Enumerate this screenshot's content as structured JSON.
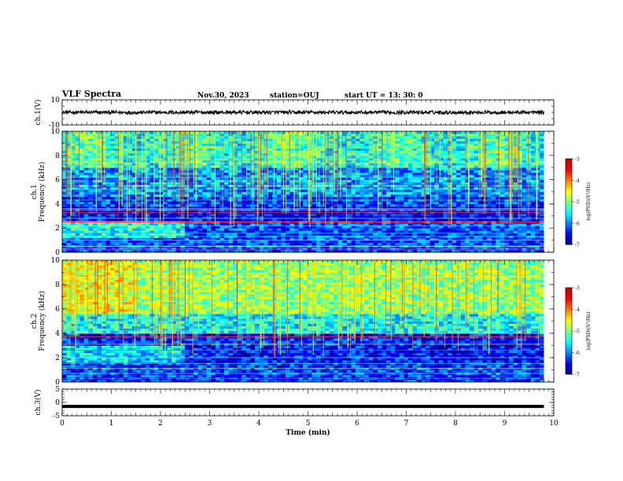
{
  "header": {
    "title": "VLF Spectra",
    "date": "Nov.30, 2023",
    "station": "station=OUJ",
    "start": "start  UT  =   13: 30: 0"
  },
  "colors": {
    "waveform": "#000000",
    "axis": "#000000",
    "colormap": [
      "#00007f",
      "#0000ff",
      "#00a0ff",
      "#00ffff",
      "#00ff7f",
      "#7fff00",
      "#ffff00",
      "#ff7f00",
      "#ff0000",
      "#ffffff"
    ]
  },
  "chart_data": [
    {
      "type": "line",
      "panel": "ch1-waveform",
      "ylabel": "ch.1(V)",
      "ylim": [
        -10,
        10
      ],
      "yticks": [
        "10",
        "-10"
      ],
      "xlim": [
        0,
        10
      ],
      "series": [
        {
          "description_level": 0.0,
          "amplitude_band": [
            -1.5,
            1.5
          ]
        }
      ]
    },
    {
      "type": "heatmap",
      "panel": "ch1-spectrogram",
      "ylabel_ch": "ch.1",
      "ylabel": "Frequency  (kHz)",
      "ylim": [
        0,
        10
      ],
      "yticks": [
        "0",
        "2",
        "4",
        "6",
        "8",
        "10"
      ],
      "xlim": [
        0,
        10
      ],
      "colorbar": {
        "label": "log(PSD)(V²/Hz)",
        "range": [
          -7,
          -3
        ],
        "ticks": [
          "-3",
          "-4",
          "-5",
          "-6",
          "-7"
        ]
      }
    },
    {
      "type": "heatmap",
      "panel": "ch2-spectrogram",
      "ylabel_ch": "ch.2",
      "ylabel": "Frequency  (kHz)",
      "ylim": [
        0,
        10
      ],
      "yticks": [
        "0",
        "2",
        "4",
        "6",
        "8",
        "10"
      ],
      "xlim": [
        0,
        10
      ],
      "colorbar": {
        "label": "log(PSD)(V²/Hz)",
        "range": [
          -7,
          -3
        ],
        "ticks": [
          "-3",
          "-4",
          "-5",
          "-6",
          "-7"
        ]
      }
    },
    {
      "type": "line",
      "panel": "ch3-waveform",
      "ylabel": "ch.3(V)",
      "ylim": [
        -5,
        5
      ],
      "yticks": [
        "5",
        "0",
        "-5"
      ],
      "xlim": [
        0,
        10
      ],
      "xlabel": "Time  (min)",
      "xticks": [
        "0",
        "1",
        "2",
        "3",
        "4",
        "5",
        "6",
        "7",
        "8",
        "9",
        "10"
      ],
      "series": [
        {
          "level": -1.5
        }
      ]
    }
  ]
}
